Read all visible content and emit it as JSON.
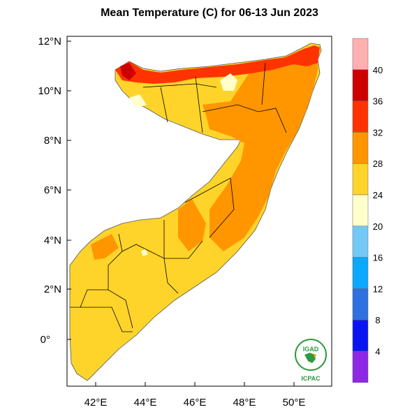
{
  "title": "Mean Temperature (C) for 06-13 Jun 2023",
  "map": {
    "region": "Somalia",
    "lon_ticks": [
      "42°E",
      "44°E",
      "46°E",
      "48°E",
      "50°E"
    ],
    "lat_ticks": [
      "12°N",
      "10°N",
      "8°N",
      "6°N",
      "4°N",
      "2°N",
      "0°"
    ]
  },
  "colorbar": {
    "labels": [
      "40",
      "36",
      "32",
      "28",
      "24",
      "20",
      "16",
      "12",
      "8",
      "4"
    ],
    "colors": [
      "#ffb0b0",
      "#cc0000",
      "#ff3300",
      "#ff9600",
      "#ffd42a",
      "#ffffcc",
      "#73c8f5",
      "#0aa8ff",
      "#3070e0",
      "#0a14f0",
      "#8c28e6"
    ]
  },
  "logo": {
    "top_text": "IGAD",
    "bottom_text": "ICPAC"
  }
}
